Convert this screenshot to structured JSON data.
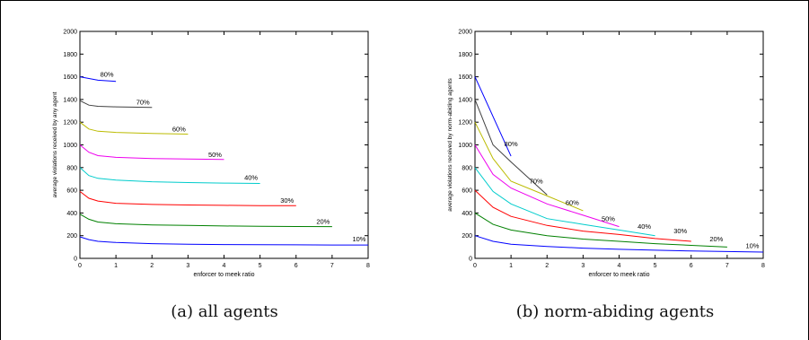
{
  "captions": {
    "a": "(a) all agents",
    "b": "(b) norm-abiding agents"
  },
  "chart_data": [
    {
      "type": "line",
      "title": "",
      "xlabel": "enforcer to meek ratio",
      "ylabel": "average violations received by any agent",
      "xlim": [
        0,
        8
      ],
      "ylim": [
        0,
        2000
      ],
      "xticks": [
        "0",
        "1",
        "2",
        "3",
        "4",
        "5",
        "6",
        "7",
        "8"
      ],
      "yticks": [
        "0",
        "200",
        "400",
        "600",
        "800",
        "1000",
        "1200",
        "1400",
        "1600",
        "1800",
        "2000"
      ],
      "grid": false,
      "series": [
        {
          "name": "10%",
          "color": "#0000ff",
          "x": [
            0,
            0.25,
            0.5,
            1,
            2,
            3,
            4,
            5,
            6,
            7,
            8
          ],
          "y": [
            190,
            165,
            150,
            140,
            130,
            125,
            122,
            120,
            119,
            118,
            118
          ]
        },
        {
          "name": "20%",
          "color": "#008000",
          "x": [
            0,
            0.25,
            0.5,
            1,
            2,
            3,
            4,
            5,
            6,
            7
          ],
          "y": [
            390,
            345,
            320,
            305,
            295,
            290,
            285,
            283,
            281,
            280
          ]
        },
        {
          "name": "30%",
          "color": "#ff0000",
          "x": [
            0,
            0.25,
            0.5,
            1,
            2,
            3,
            4,
            5,
            6
          ],
          "y": [
            590,
            530,
            505,
            485,
            475,
            470,
            467,
            465,
            464
          ]
        },
        {
          "name": "40%",
          "color": "#00cccc",
          "x": [
            0,
            0.25,
            0.5,
            1,
            2,
            3,
            4,
            5
          ],
          "y": [
            800,
            730,
            705,
            690,
            675,
            668,
            663,
            660
          ]
        },
        {
          "name": "50%",
          "color": "#ee00ee",
          "x": [
            0,
            0.25,
            0.5,
            1,
            2,
            3,
            4
          ],
          "y": [
            1000,
            935,
            905,
            890,
            880,
            875,
            872
          ]
        },
        {
          "name": "60%",
          "color": "#bbbb00",
          "x": [
            0,
            0.25,
            0.5,
            1,
            2,
            3
          ],
          "y": [
            1200,
            1140,
            1120,
            1110,
            1100,
            1095
          ]
        },
        {
          "name": "70%",
          "color": "#404040",
          "x": [
            0,
            0.25,
            0.5,
            1,
            2
          ],
          "y": [
            1390,
            1350,
            1340,
            1335,
            1330
          ]
        },
        {
          "name": "80%",
          "color": "#0000ff",
          "x": [
            0,
            0.5,
            1
          ],
          "y": [
            1600,
            1570,
            1560
          ]
        }
      ],
      "annotations": [
        {
          "text": "10%",
          "x": 7.75,
          "y": 150
        },
        {
          "text": "20%",
          "x": 6.75,
          "y": 305
        },
        {
          "text": "30%",
          "x": 5.75,
          "y": 490
        },
        {
          "text": "40%",
          "x": 4.75,
          "y": 690
        },
        {
          "text": "50%",
          "x": 3.75,
          "y": 895
        },
        {
          "text": "60%",
          "x": 2.75,
          "y": 1120
        },
        {
          "text": "70%",
          "x": 1.75,
          "y": 1355
        },
        {
          "text": "80%",
          "x": 0.75,
          "y": 1600
        }
      ]
    },
    {
      "type": "line",
      "title": "",
      "xlabel": "enforcer to meek ratio",
      "ylabel": "average violations received by norm-abiding agents",
      "xlim": [
        0,
        8
      ],
      "ylim": [
        0,
        2000
      ],
      "xticks": [
        "0",
        "1",
        "2",
        "3",
        "4",
        "5",
        "6",
        "7",
        "8"
      ],
      "yticks": [
        "0",
        "200",
        "400",
        "600",
        "800",
        "1000",
        "1200",
        "1400",
        "1600",
        "1800",
        "2000"
      ],
      "grid": false,
      "series": [
        {
          "name": "10%",
          "color": "#0000ff",
          "x": [
            0,
            0.5,
            1,
            2,
            3,
            4,
            5,
            6,
            7,
            8
          ],
          "y": [
            200,
            150,
            125,
            105,
            90,
            80,
            72,
            65,
            60,
            55
          ]
        },
        {
          "name": "20%",
          "color": "#008000",
          "x": [
            0,
            0.5,
            1,
            2,
            3,
            4,
            5,
            6,
            7
          ],
          "y": [
            400,
            300,
            250,
            200,
            170,
            150,
            130,
            115,
            100
          ]
        },
        {
          "name": "30%",
          "color": "#ff0000",
          "x": [
            0,
            0.5,
            1,
            2,
            3,
            4,
            5,
            6
          ],
          "y": [
            600,
            450,
            370,
            290,
            240,
            210,
            175,
            150
          ]
        },
        {
          "name": "40%",
          "color": "#00cccc",
          "x": [
            0,
            0.5,
            1,
            2,
            3,
            4,
            5
          ],
          "y": [
            800,
            590,
            480,
            350,
            300,
            250,
            200
          ]
        },
        {
          "name": "50%",
          "color": "#ee00ee",
          "x": [
            0,
            0.5,
            1,
            2,
            3,
            4
          ],
          "y": [
            1000,
            740,
            620,
            480,
            380,
            280
          ]
        },
        {
          "name": "60%",
          "color": "#bbbb00",
          "x": [
            0,
            0.5,
            1,
            2,
            3
          ],
          "y": [
            1200,
            880,
            680,
            550,
            420
          ]
        },
        {
          "name": "70%",
          "color": "#404040",
          "x": [
            0,
            0.5,
            1,
            2
          ],
          "y": [
            1400,
            1000,
            850,
            560
          ]
        },
        {
          "name": "80%",
          "color": "#0000ff",
          "x": [
            0,
            0.5,
            1
          ],
          "y": [
            1600,
            1250,
            900
          ]
        }
      ],
      "annotations": [
        {
          "text": "10%",
          "x": 7.7,
          "y": 90
        },
        {
          "text": "20%",
          "x": 6.7,
          "y": 150
        },
        {
          "text": "30%",
          "x": 5.7,
          "y": 220
        },
        {
          "text": "40%",
          "x": 4.7,
          "y": 260
        },
        {
          "text": "50%",
          "x": 3.7,
          "y": 330
        },
        {
          "text": "60%",
          "x": 2.7,
          "y": 470
        },
        {
          "text": "70%",
          "x": 1.7,
          "y": 660
        },
        {
          "text": "80%",
          "x": 1.0,
          "y": 990
        }
      ]
    }
  ]
}
